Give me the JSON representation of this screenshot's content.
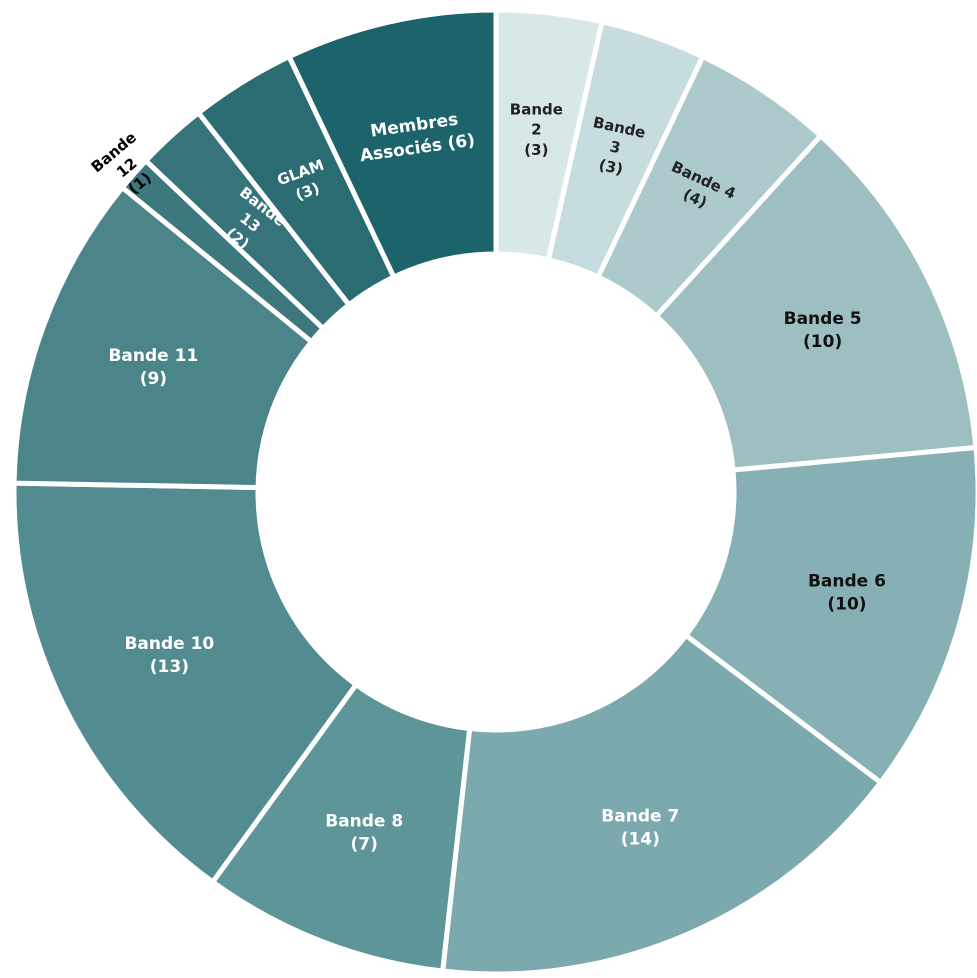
{
  "chart_data": {
    "type": "pie",
    "variant": "donut",
    "title": "",
    "legend": "none",
    "categories": [
      "Bande 2",
      "Bande 3",
      "Bande 4",
      "Bande 5",
      "Bande 6",
      "Bande 7",
      "Bande 8",
      "Bande 10",
      "Bande 11",
      "Bande 12",
      "Bande 13",
      "GLAM",
      "Membres Associés"
    ],
    "values": [
      3,
      3,
      4,
      10,
      10,
      14,
      7,
      13,
      9,
      1,
      2,
      3,
      6
    ],
    "labels": [
      [
        "Bande",
        "2",
        "(3)"
      ],
      [
        "Bande",
        "3",
        "(3)"
      ],
      [
        "Bande 4",
        "(4)"
      ],
      [
        "Bande 5",
        "(10)"
      ],
      [
        "Bande 6",
        "(10)"
      ],
      [
        "Bande 7",
        "(14)"
      ],
      [
        "Bande 8",
        "(7)"
      ],
      [
        "Bande 10",
        "(13)"
      ],
      [
        "Bande 11",
        "(9)"
      ],
      [
        "Bande",
        "12",
        "(1)"
      ],
      [
        "Bande",
        "13",
        "(2)"
      ],
      [
        "GLAM",
        "(3)"
      ],
      [
        "Membres",
        "Associés (6)"
      ]
    ],
    "colors": [
      "#d8e7e8",
      "#c6dcde",
      "#acc9cc",
      "#9dbfc2",
      "#87b0b4",
      "#7ca9ad",
      "#5e9599",
      "#528b90",
      "#4b858a",
      "#3d787e",
      "#36737a",
      "#2b6c73",
      "#1d636b"
    ],
    "label_colors": [
      "#222222",
      "#222222",
      "#222222",
      "#111111",
      "#111111",
      "#ffffff",
      "#ffffff",
      "#ffffff",
      "#ffffff",
      "#000000",
      "#ffffff",
      "#ffffff",
      "#ffffff"
    ]
  }
}
